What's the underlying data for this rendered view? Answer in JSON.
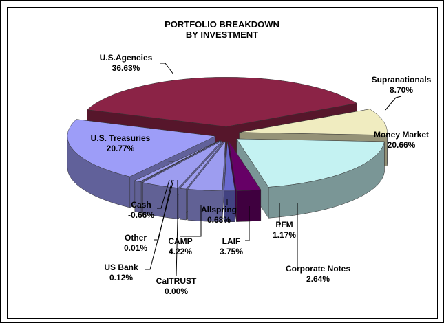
{
  "chart_data": {
    "type": "pie",
    "title": "PORTFOLIO BREAKDOWN\nBY INVESTMENT",
    "categories": [
      "U.S.Agencies",
      "Supranationals",
      "Money Market",
      "Corporate Notes",
      "PFM",
      "LAIF",
      "Allspring",
      "CAMP",
      "CalTRUST",
      "US Bank",
      "Other",
      "Cash",
      "U.S. Treasuries"
    ],
    "values": [
      36.63,
      8.7,
      20.66,
      2.64,
      1.17,
      3.75,
      0.68,
      4.22,
      0.0,
      0.12,
      0.01,
      -0.66,
      20.77
    ],
    "value_labels": [
      "36.63%",
      "8.70%",
      "20.66%",
      "2.64%",
      "1.17%",
      "3.75%",
      "0.68%",
      "4.22%",
      "0.00%",
      "0.12%",
      "0.01%",
      "-0.66%",
      "20.77%"
    ],
    "colors": [
      "#8b2346",
      "#f0ecc0",
      "#c4f2f2",
      "#660066",
      "#6a6ad0",
      "#9d9df0",
      "#9d9df0",
      "#9d9df0",
      "#9d9df0",
      "#9d9df0",
      "#9d9df0",
      "#9d9df0",
      "#9d9df8"
    ]
  }
}
